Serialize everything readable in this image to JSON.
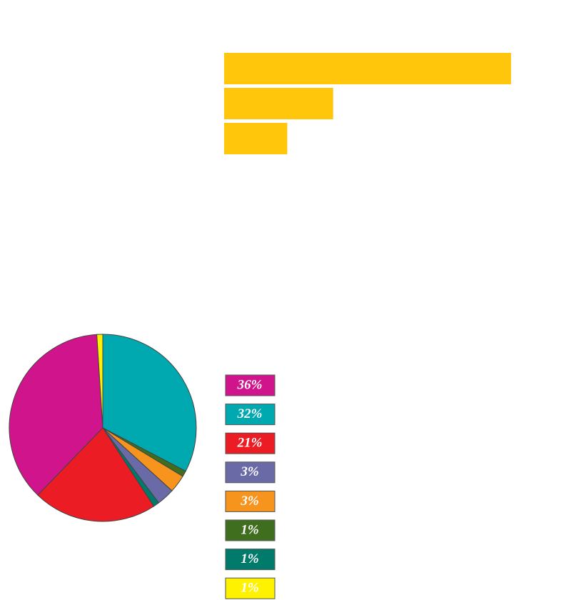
{
  "chart_data": [
    {
      "type": "bar",
      "orientation": "horizontal",
      "categories": [
        null,
        null,
        null
      ],
      "values": [
        100,
        38,
        22
      ],
      "color": "#ffc60b",
      "xlim": [
        0,
        100
      ]
    },
    {
      "type": "pie",
      "categories": [
        null,
        null,
        null,
        null,
        null,
        null,
        null,
        null
      ],
      "values": [
        36,
        32,
        21,
        3,
        3,
        1,
        1,
        1
      ],
      "value_labels": [
        "36%",
        "32%",
        "21%",
        "3%",
        "3%",
        "1%",
        "1%",
        "1%"
      ],
      "colors": [
        "#d0148c",
        "#00a8b0",
        "#ec1c24",
        "#6a6aa6",
        "#f7941d",
        "#3f6e1f",
        "#007a6a",
        "#fff200"
      ]
    }
  ]
}
